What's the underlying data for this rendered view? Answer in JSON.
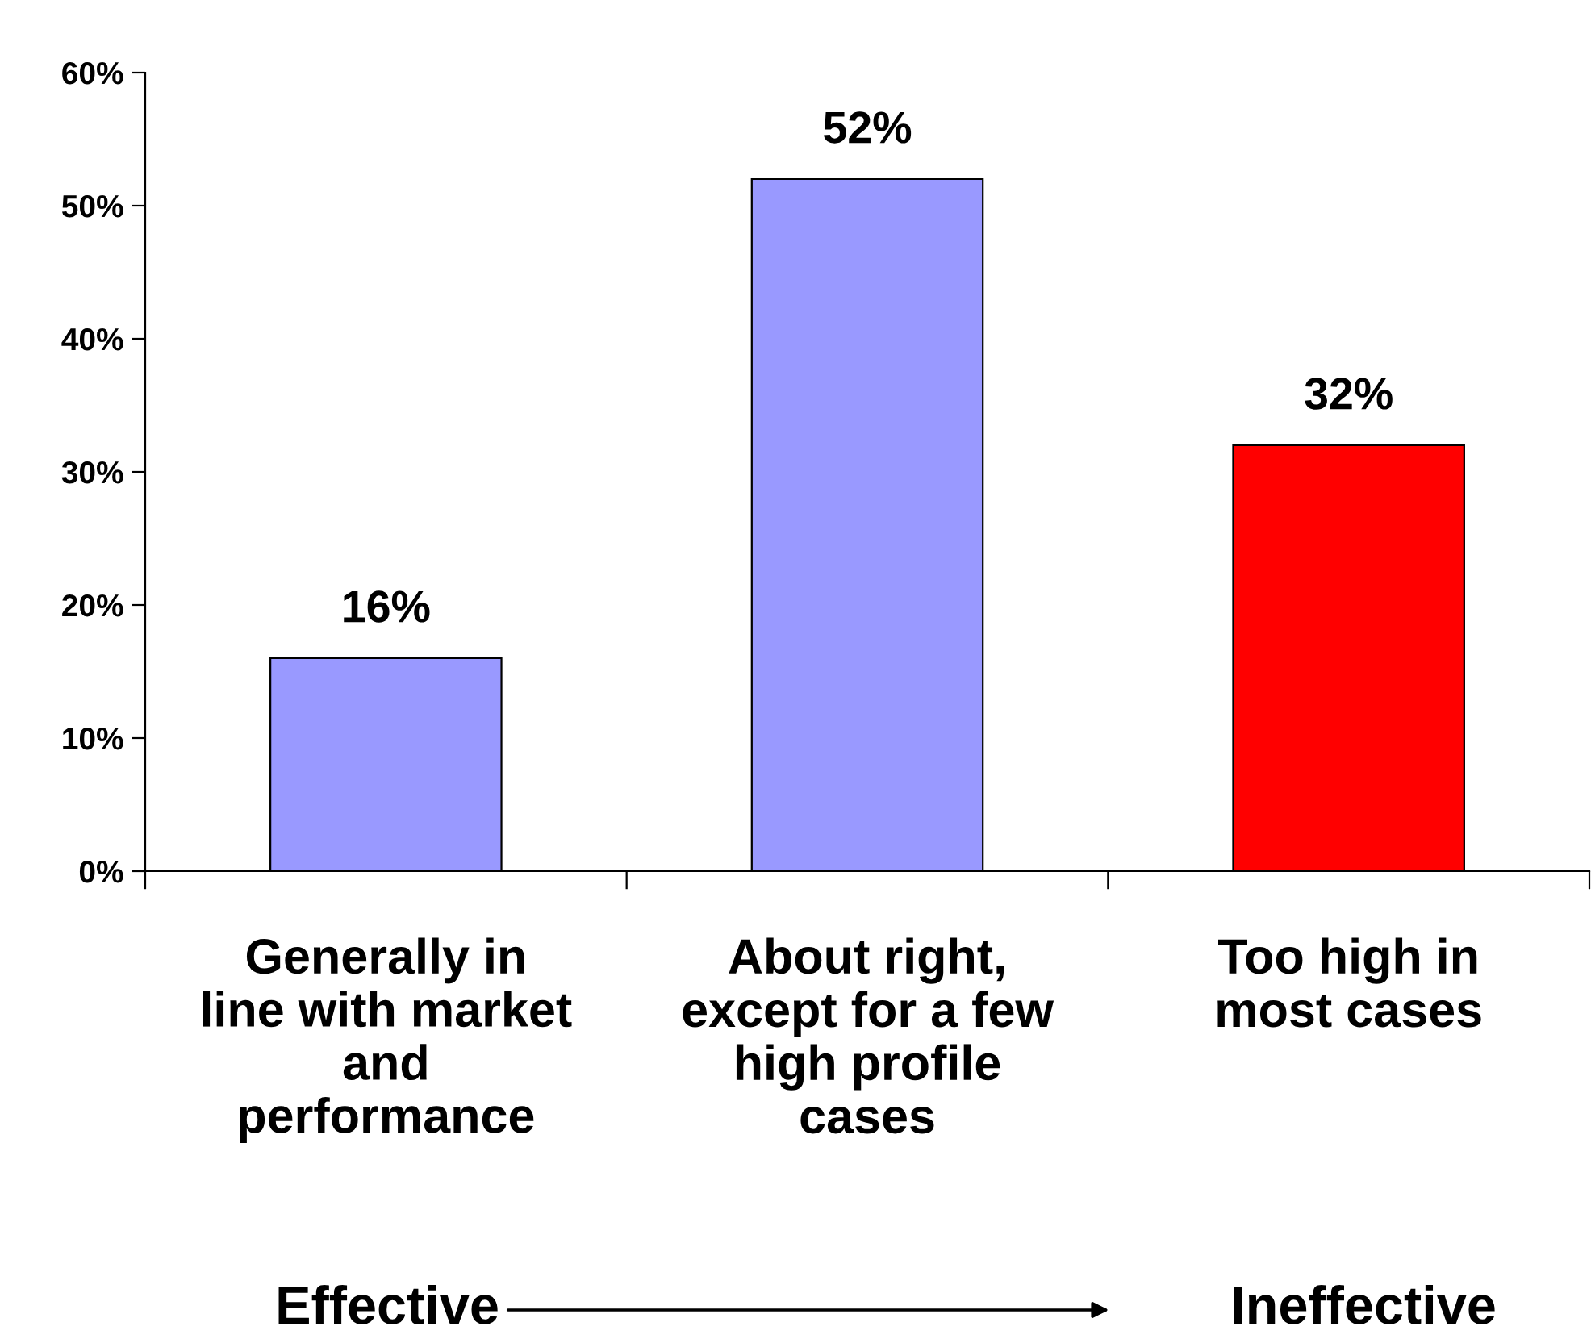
{
  "chart_data": {
    "type": "bar",
    "categories": [
      "Generally in\nline with market\nand\nperformance",
      "About right,\nexcept for a few\nhigh profile\ncases",
      "Too high in\nmost cases"
    ],
    "values": [
      16,
      52,
      32
    ],
    "colors": [
      "#9999ff",
      "#9999ff",
      "#ff0000"
    ],
    "value_labels": [
      "16%",
      "52%",
      "32%"
    ],
    "ylim": [
      0,
      60
    ],
    "yticks": [
      {
        "value": 0,
        "label": "0%"
      },
      {
        "value": 10,
        "label": "10%"
      },
      {
        "value": 20,
        "label": "20%"
      },
      {
        "value": 30,
        "label": "30%"
      },
      {
        "value": 40,
        "label": "40%"
      },
      {
        "value": 50,
        "label": "50%"
      },
      {
        "value": 60,
        "label": "60%"
      }
    ],
    "grid": false,
    "legend": false,
    "annotations": [
      "Effective",
      "Ineffective"
    ]
  }
}
